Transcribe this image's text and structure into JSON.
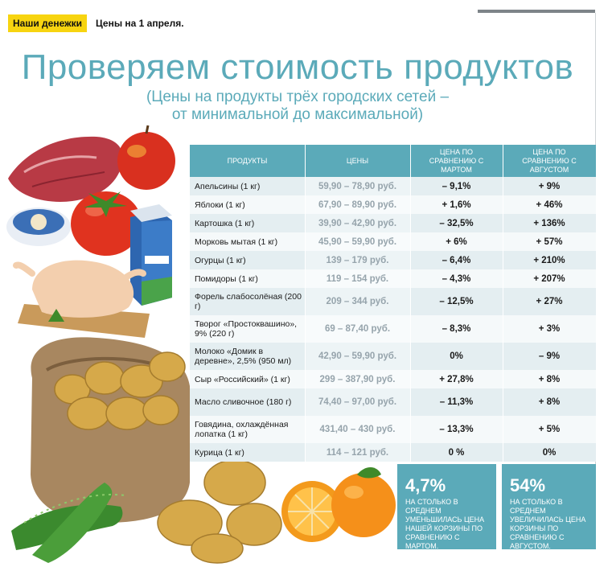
{
  "header": {
    "rubric": "Наши денежки",
    "date": "Цены на 1 апреля."
  },
  "title": "Проверяем стоимость продуктов",
  "subtitle": {
    "line1": "(Цены на продукты трёх городских сетей –",
    "line2": "от минимальной до максимальной)"
  },
  "table": {
    "headers": [
      "Продукты",
      "Цены",
      "Цена по сравнению с мартом",
      "Цена по сравнению с августом"
    ],
    "rows": [
      {
        "product": "Апельсины (1 кг)",
        "price": "59,90 – 78,90 руб.",
        "vs_march": "– 9,1%",
        "vs_august": "+ 9%"
      },
      {
        "product": "Яблоки (1 кг)",
        "price": "67,90 – 89,90 руб.",
        "vs_march": "+ 1,6%",
        "vs_august": "+ 46%"
      },
      {
        "product": "Картошка (1 кг)",
        "price": "39,90 – 42,90 руб.",
        "vs_march": "– 32,5%",
        "vs_august": "+ 136%"
      },
      {
        "product": "Морковь мытая (1 кг)",
        "price": "45,90 – 59,90 руб.",
        "vs_march": "+ 6%",
        "vs_august": "+ 57%"
      },
      {
        "product": "Огурцы (1 кг)",
        "price": "139 – 179 руб.",
        "vs_march": "– 6,4%",
        "vs_august": "+ 210%"
      },
      {
        "product": "Помидоры (1 кг)",
        "price": "119 – 154 руб.",
        "vs_march": "– 4,3%",
        "vs_august": "+ 207%"
      },
      {
        "product": "Форель слабосолёная (200 г)",
        "price": "209 – 344 руб.",
        "vs_march": "– 12,5%",
        "vs_august": "+ 27%"
      },
      {
        "product": "Творог «Простоквашино», 9% (220 г)",
        "price": "69 – 87,40 руб.",
        "vs_march": "– 8,3%",
        "vs_august": "+ 3%"
      },
      {
        "product": "Молоко «Домик в деревне», 2,5% (950 мл)",
        "price": "42,90 – 59,90 руб.",
        "vs_march": "0%",
        "vs_august": "– 9%"
      },
      {
        "product": "Сыр «Российский» (1 кг)",
        "price": "299 – 387,90 руб.",
        "vs_march": "+ 27,8%",
        "vs_august": "+ 8%"
      },
      {
        "product": "Масло сливочное (180 г)",
        "price": "74,40 – 97,00 руб.",
        "vs_march": "– 11,3%",
        "vs_august": "+ 8%"
      },
      {
        "product": "Говядина, охлаждённая лопатка (1 кг)",
        "price": "431,40 – 430 руб.",
        "vs_march": "– 13,3%",
        "vs_august": "+ 5%"
      },
      {
        "product": "Курица (1 кг)",
        "price": "114 – 121 руб.",
        "vs_march": "0 %",
        "vs_august": "0%"
      }
    ]
  },
  "summary": [
    {
      "value": "4,7%",
      "text": "На столько в среднем уменьшилась цена нашей корзины по сравнению с мартом."
    },
    {
      "value": "54%",
      "text": "На столько в среднем увеличилась цена корзины по сравнению с августом."
    }
  ],
  "colors": {
    "accent": "#5baab9",
    "rubric": "#f7d410",
    "row_odd": "#e4eef1",
    "row_even": "#f5f9fa",
    "price_text": "#96a4ac"
  }
}
